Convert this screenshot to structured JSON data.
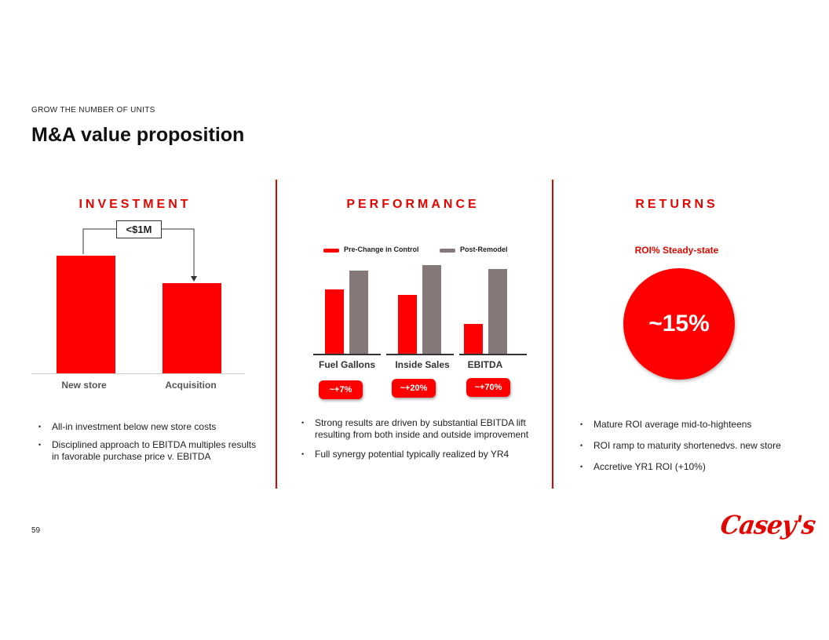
{
  "header": {
    "kicker": "GROW THE NUMBER OF UNITS",
    "title": "M&A value proposition"
  },
  "investment": {
    "heading": "INVESTMENT",
    "callout": "<$1M",
    "chart_data": {
      "type": "bar",
      "categories": [
        "New store",
        "Acquisition"
      ],
      "values": [
        150,
        115
      ],
      "ylim": [
        0,
        160
      ],
      "color": "#ff0000"
    },
    "bullets": [
      "All-in investment below new store costs",
      "Disciplined approach to EBITDA multiples results in favorable purchase price v. EBITDA"
    ]
  },
  "performance": {
    "heading": "PERFORMANCE",
    "chart_data": {
      "type": "bar",
      "categories": [
        "Fuel Gallons",
        "Inside Sales",
        "EBITDA"
      ],
      "series": [
        {
          "name": "Pre-Change in Control",
          "values": [
            80,
            73,
            37
          ],
          "color": "#ff0000"
        },
        {
          "name": "Post-Remodel",
          "values": [
            103,
            109,
            104
          ],
          "color": "#857878"
        }
      ],
      "ylim": [
        0,
        115
      ],
      "legend": "top"
    },
    "changes": [
      "~+7%",
      "~+20%",
      "~+70%"
    ],
    "bullets": [
      "Strong results are driven by substantial EBITDA lift resulting from both inside and outside improvement",
      "Full synergy potential typically realized by YR4"
    ]
  },
  "returns": {
    "heading": "RETURNS",
    "subtitle": "ROI% Steady-state",
    "value": "~15%",
    "bullets": [
      "Mature ROI average  mid-to-highteens",
      "ROI ramp to maturity shortenedvs. new store",
      "Accretive YR1 ROI (+10%)"
    ]
  },
  "footer": {
    "page_number": "59",
    "logo": "Casey's"
  },
  "colors": {
    "accent": "#e10600",
    "bar_red": "#ff0000",
    "bar_grey": "#857878"
  }
}
